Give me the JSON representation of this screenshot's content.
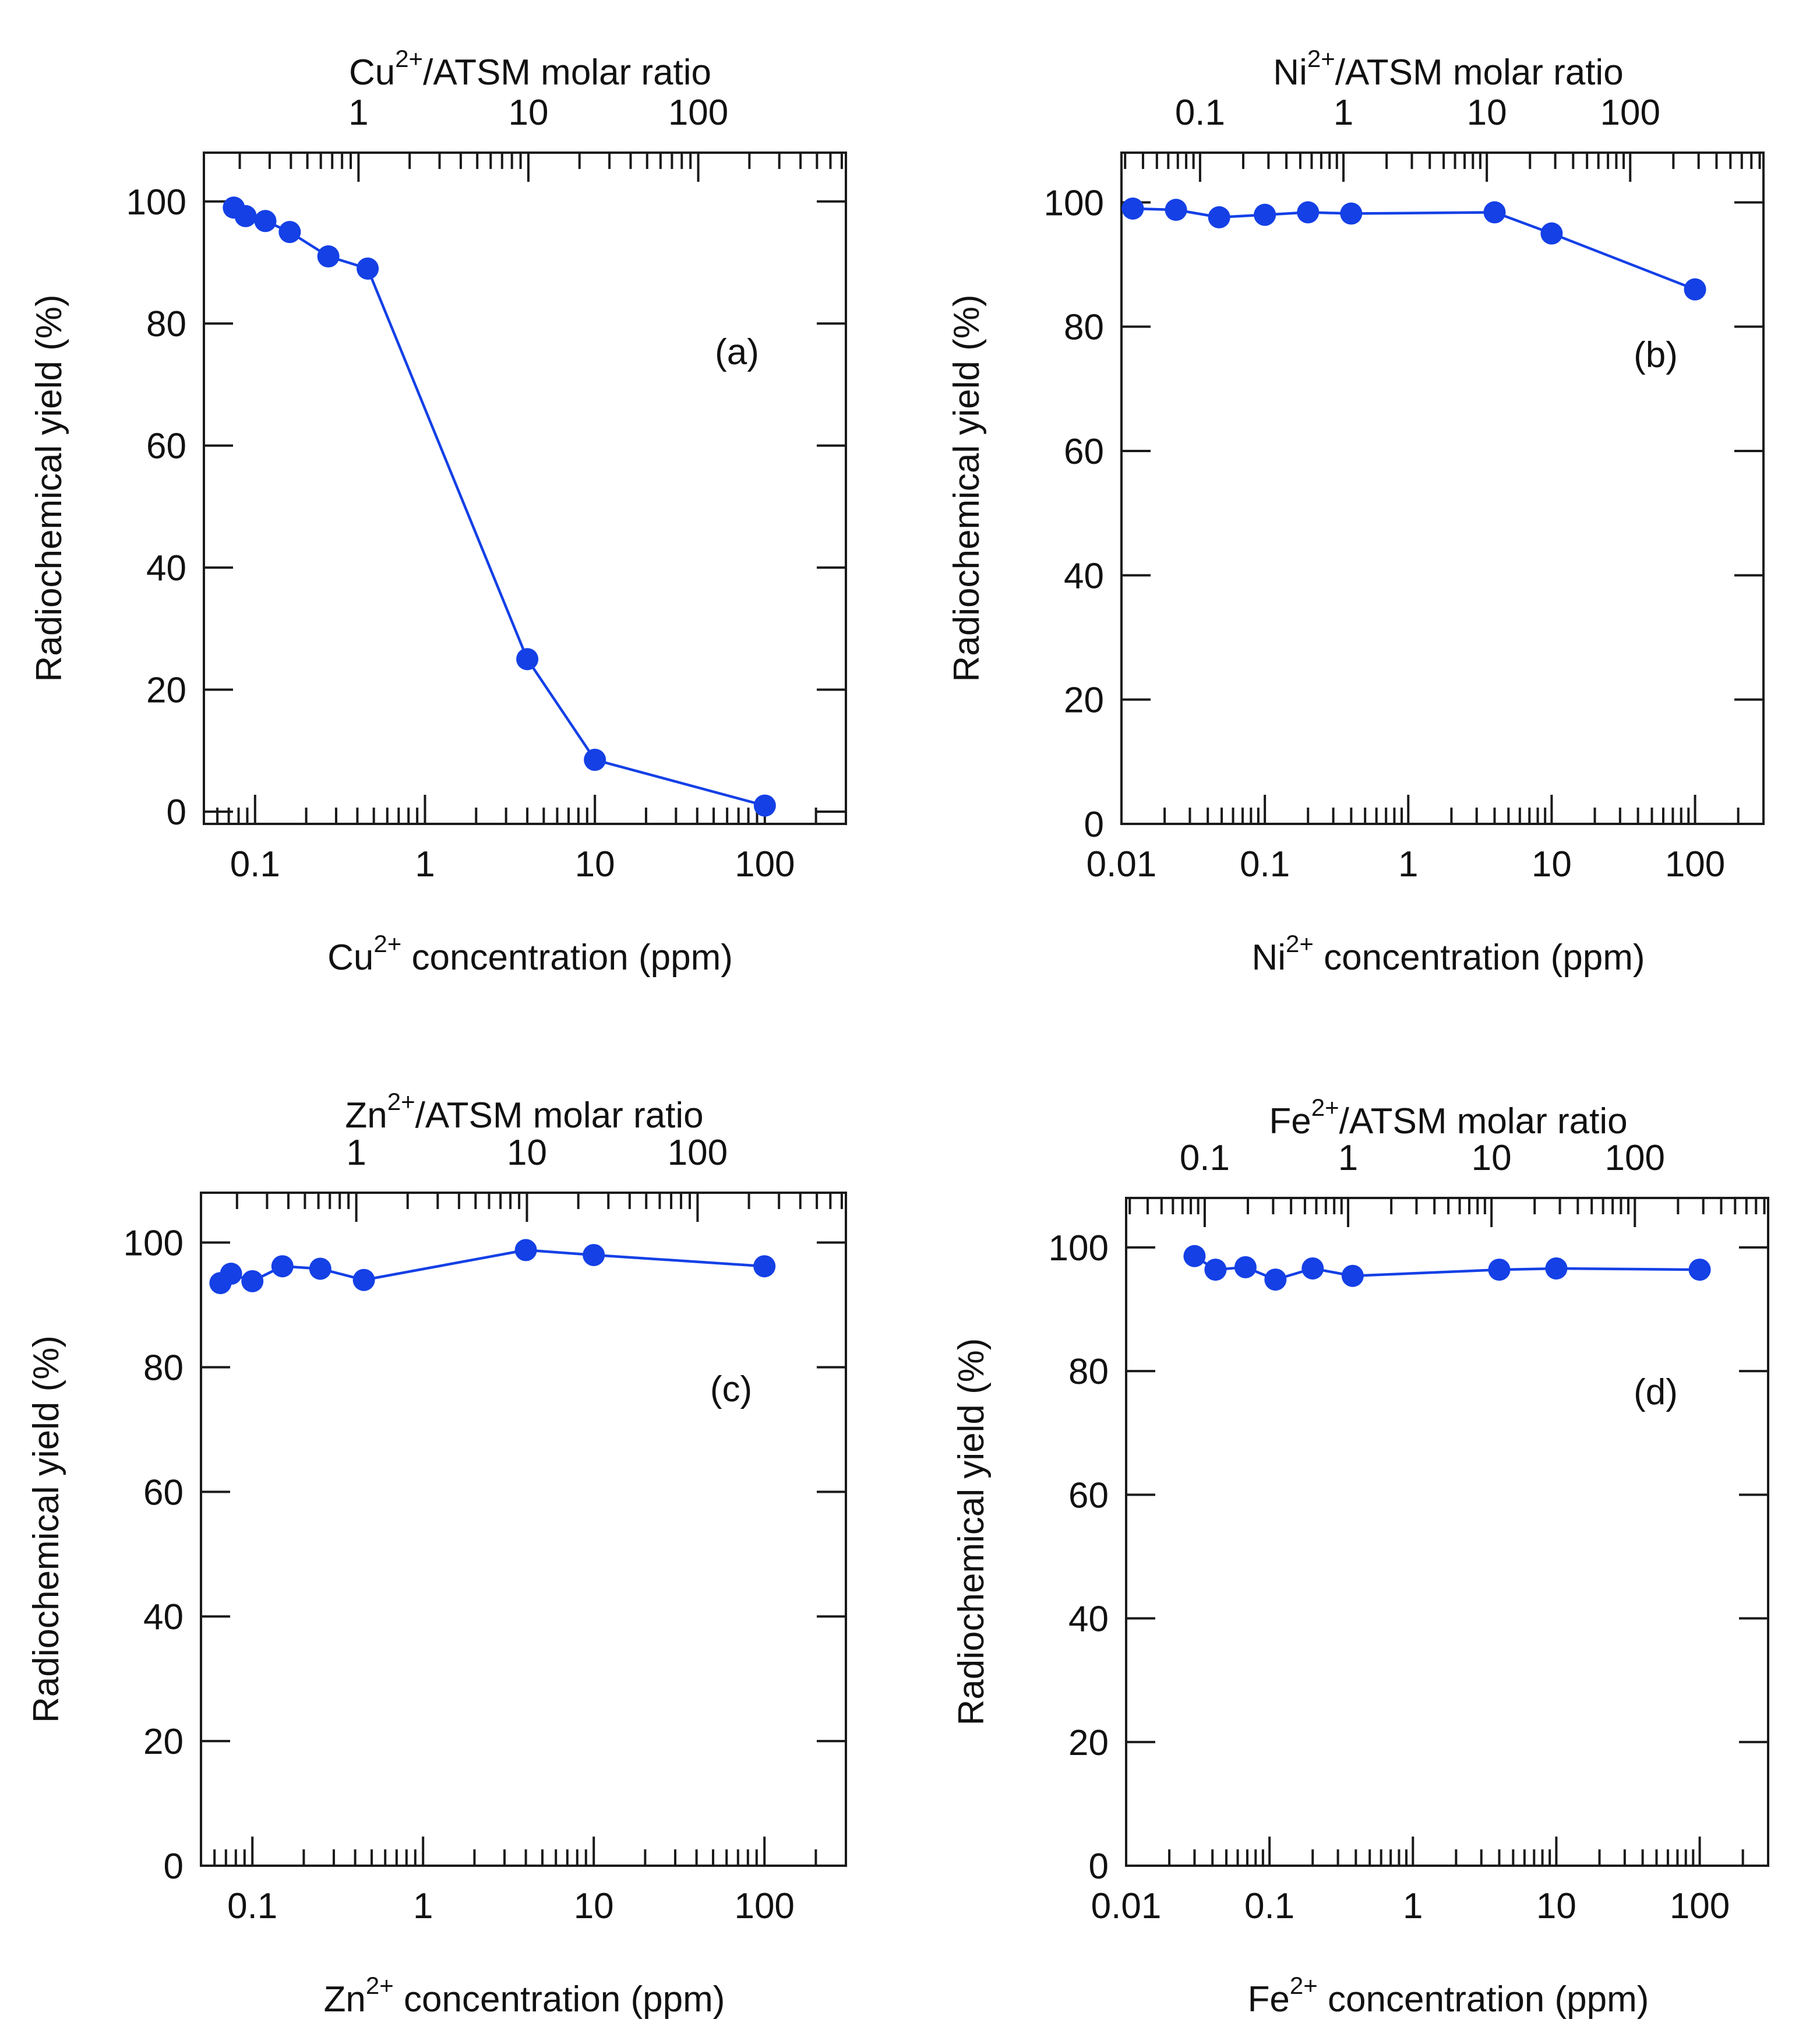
{
  "figure": {
    "series_color": "#1440e6",
    "axis_color": "#1a1a1a"
  },
  "chart_data": [
    {
      "type": "line",
      "panel_label": "(a)",
      "element": "Cu",
      "charge": "2+",
      "xlabel_suffix": " concentration (ppm)",
      "top_xlabel_suffix": "/ATSM molar ratio",
      "ylabel": "Radiochemical yield (%)",
      "xscale": "log",
      "xlim": [
        0.05,
        300
      ],
      "ylim": [
        -2,
        108
      ],
      "yticks": [
        0,
        20,
        40,
        60,
        80,
        100
      ],
      "ytick_labels": [
        "0",
        "20",
        "40",
        "60",
        "80",
        "100"
      ],
      "xticks": [
        0.1,
        1,
        10,
        100
      ],
      "xtick_labels": [
        "0.1",
        "1",
        "10",
        "100"
      ],
      "top_xlim": [
        0.123,
        740
      ],
      "top_xticks": [
        1,
        10,
        100
      ],
      "top_xtick_labels": [
        "1",
        "10",
        "100"
      ],
      "x": [
        0.075,
        0.088,
        0.115,
        0.16,
        0.27,
        0.46,
        4.0,
        10.0,
        100.0
      ],
      "y": [
        99,
        97.6,
        96.8,
        95,
        91,
        89,
        25,
        8.5,
        1
      ]
    },
    {
      "type": "line",
      "panel_label": "(b)",
      "element": "Ni",
      "charge": "2+",
      "xlabel_suffix": " concentration (ppm)",
      "top_xlabel_suffix": "/ATSM molar ratio",
      "ylabel": "Radiochemical yield (%)",
      "xscale": "log",
      "xlim": [
        0.01,
        300
      ],
      "ylim": [
        0,
        108
      ],
      "yticks": [
        0,
        20,
        40,
        60,
        80,
        100
      ],
      "ytick_labels": [
        "0",
        "20",
        "40",
        "60",
        "80",
        "100"
      ],
      "xticks": [
        0.01,
        0.1,
        1,
        10,
        100
      ],
      "xtick_labels": [
        "0.01",
        "0.1",
        "1",
        "10",
        "100"
      ],
      "top_xlim": [
        0.0283,
        850
      ],
      "top_xticks": [
        0.1,
        1,
        10,
        100
      ],
      "top_xtick_labels": [
        "0.1",
        "1",
        "10",
        "100"
      ],
      "x": [
        0.012,
        0.024,
        0.048,
        0.1,
        0.2,
        0.4,
        4.0,
        10.0,
        100.0
      ],
      "y": [
        99,
        98.8,
        97.6,
        98,
        98.4,
        98.2,
        98.4,
        95,
        86
      ]
    },
    {
      "type": "line",
      "panel_label": "(c)",
      "element": "Zn",
      "charge": "2+",
      "xlabel_suffix": " concentration (ppm)",
      "top_xlabel_suffix": "/ATSM molar ratio",
      "ylabel": "Radiochemical yield (%)",
      "xscale": "log",
      "xlim": [
        0.05,
        300
      ],
      "ylim": [
        0,
        108
      ],
      "yticks": [
        0,
        20,
        40,
        60,
        80,
        100
      ],
      "ytick_labels": [
        "0",
        "20",
        "40",
        "60",
        "80",
        "100"
      ],
      "xticks": [
        0.1,
        1,
        10,
        100
      ],
      "xtick_labels": [
        "0.1",
        "1",
        "10",
        "100"
      ],
      "top_xlim": [
        0.123,
        740
      ],
      "top_xticks": [
        1,
        10,
        100
      ],
      "top_xtick_labels": [
        "1",
        "10",
        "100"
      ],
      "x": [
        0.065,
        0.075,
        0.1,
        0.15,
        0.25,
        0.45,
        4.0,
        10.0,
        100.0
      ],
      "y": [
        93.5,
        95,
        93.8,
        96.2,
        95.8,
        94,
        98.8,
        98,
        96.2
      ]
    },
    {
      "type": "line",
      "panel_label": "(d)",
      "element": "Fe",
      "charge": "2+",
      "xlabel_suffix": " concentration (ppm)",
      "top_xlabel_suffix": "/ATSM molar ratio",
      "ylabel": "Radiochemical yield (%)",
      "xscale": "log",
      "xlim": [
        0.01,
        300
      ],
      "ylim": [
        0,
        108
      ],
      "yticks": [
        0,
        20,
        40,
        60,
        80,
        100
      ],
      "ytick_labels": [
        "0",
        "20",
        "40",
        "60",
        "80",
        "100"
      ],
      "xticks": [
        0.01,
        0.1,
        1,
        10,
        100
      ],
      "xtick_labels": [
        "0.01",
        "0.1",
        "1",
        "10",
        "100"
      ],
      "top_xlim": [
        0.0283,
        850
      ],
      "top_xticks": [
        0.1,
        1,
        10,
        100
      ],
      "top_xtick_labels": [
        "0.1",
        "1",
        "10",
        "100"
      ],
      "x": [
        0.03,
        0.042,
        0.068,
        0.11,
        0.2,
        0.38,
        4.0,
        10.0,
        100.0
      ],
      "y": [
        98.6,
        96.4,
        96.8,
        94.8,
        96.6,
        95.4,
        96.4,
        96.6,
        96.4
      ]
    }
  ]
}
